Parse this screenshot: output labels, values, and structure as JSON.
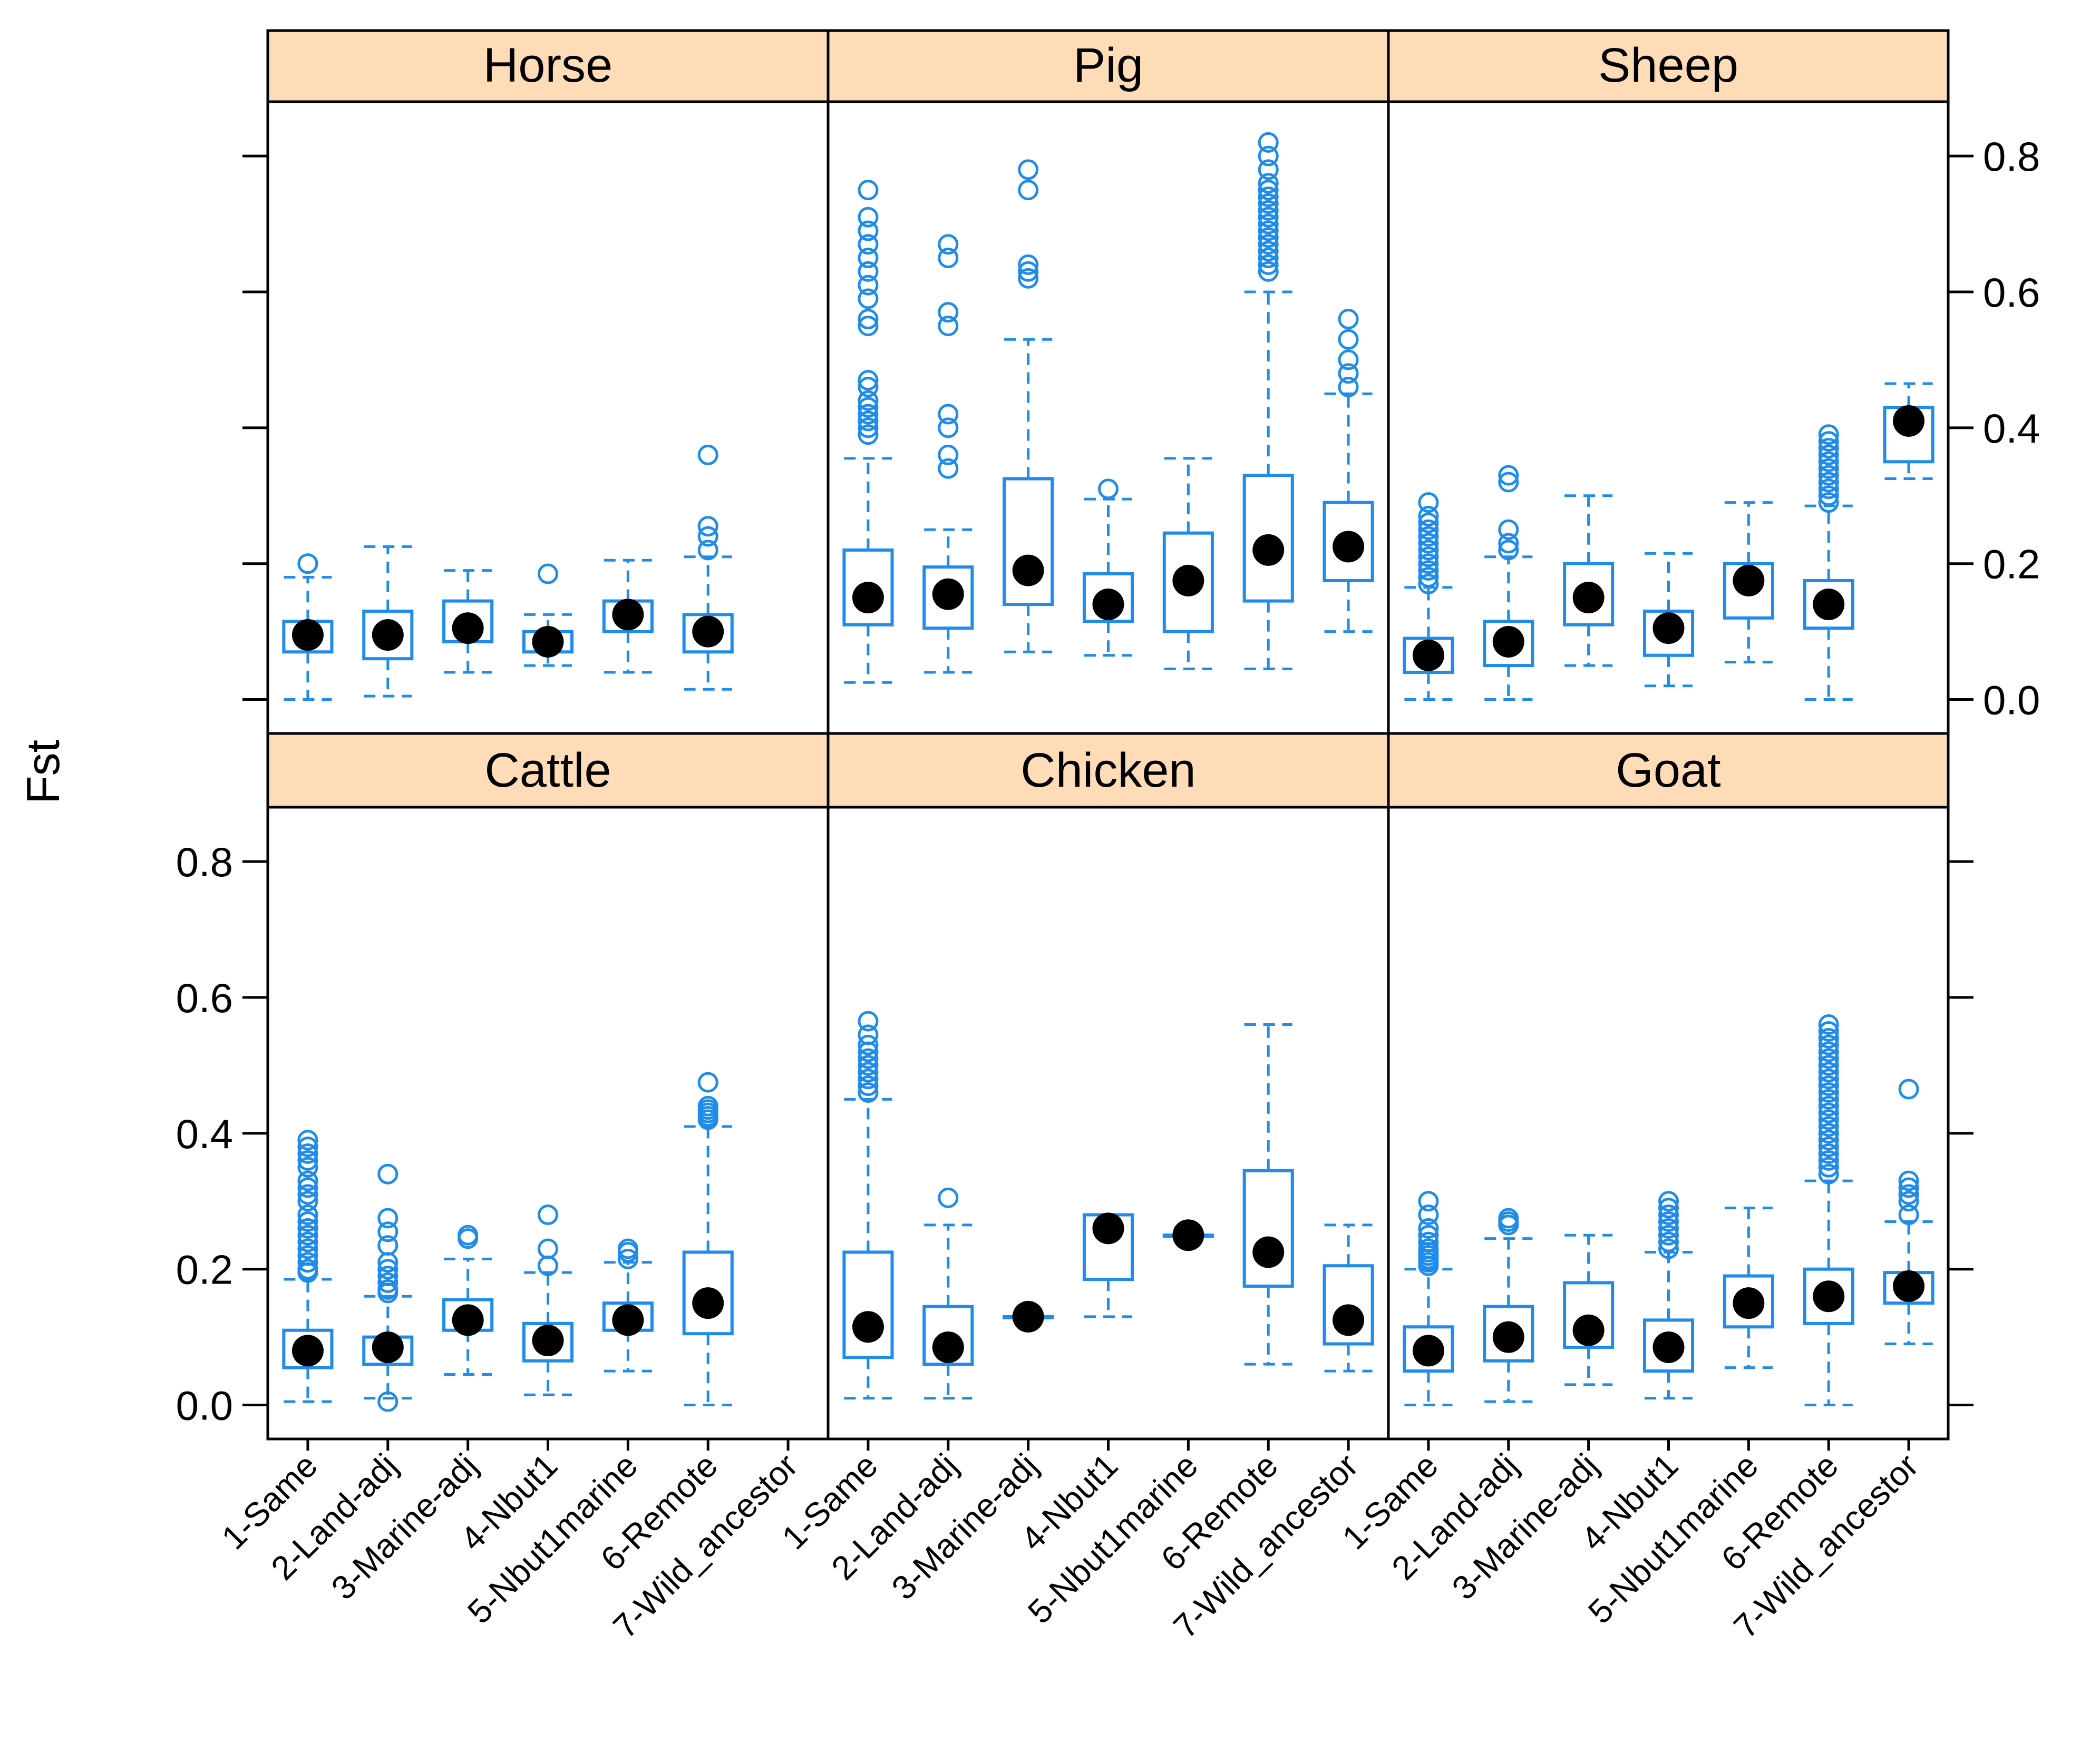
{
  "chart_data": {
    "type": "boxplot",
    "ylabel": "Fst",
    "ylim": [
      -0.05,
      0.88
    ],
    "yticks": [
      0.0,
      0.2,
      0.4,
      0.6,
      0.8
    ],
    "ytick_labels": [
      "0.0",
      "0.2",
      "0.4",
      "0.6",
      "0.8"
    ],
    "categories": [
      "1-Same",
      "2-Land-adj",
      "3-Marine-adj",
      "4-Nbut1",
      "5-Nbut1marine",
      "6-Remote",
      "7-Wild_ancestor"
    ],
    "colors": {
      "box": "#1f8ceb",
      "median": "#000000",
      "strip_bg": "#ffdcb8",
      "frame": "#000000"
    },
    "panels": [
      {
        "name": "Horse",
        "boxes": [
          {
            "category": "1-Same",
            "whisker_low": 0.0,
            "q1": 0.07,
            "median": 0.095,
            "q3": 0.115,
            "whisker_high": 0.18,
            "outliers": [
              0.2,
              0.2
            ]
          },
          {
            "category": "2-Land-adj",
            "whisker_low": 0.005,
            "q1": 0.06,
            "median": 0.095,
            "q3": 0.13,
            "whisker_high": 0.225,
            "outliers": []
          },
          {
            "category": "3-Marine-adj",
            "whisker_low": 0.04,
            "q1": 0.085,
            "median": 0.105,
            "q3": 0.145,
            "whisker_high": 0.19,
            "outliers": []
          },
          {
            "category": "4-Nbut1",
            "whisker_low": 0.05,
            "q1": 0.07,
            "median": 0.085,
            "q3": 0.1,
            "whisker_high": 0.125,
            "outliers": [
              0.185
            ]
          },
          {
            "category": "5-Nbut1marine",
            "whisker_low": 0.04,
            "q1": 0.1,
            "median": 0.125,
            "q3": 0.145,
            "whisker_high": 0.205,
            "outliers": []
          },
          {
            "category": "6-Remote",
            "whisker_low": 0.015,
            "q1": 0.07,
            "median": 0.1,
            "q3": 0.125,
            "whisker_high": 0.21,
            "outliers": [
              0.22,
              0.24,
              0.255,
              0.36
            ]
          },
          {
            "category": "7-Wild_ancestor",
            "absent": true
          }
        ]
      },
      {
        "name": "Pig",
        "boxes": [
          {
            "category": "1-Same",
            "whisker_low": 0.025,
            "q1": 0.11,
            "median": 0.15,
            "q3": 0.22,
            "whisker_high": 0.355,
            "outliers": [
              0.39,
              0.4,
              0.41,
              0.42,
              0.43,
              0.44,
              0.46,
              0.47,
              0.55,
              0.56,
              0.59,
              0.61,
              0.63,
              0.65,
              0.67,
              0.69,
              0.71,
              0.75
            ]
          },
          {
            "category": "2-Land-adj",
            "whisker_low": 0.04,
            "q1": 0.105,
            "median": 0.155,
            "q3": 0.195,
            "whisker_high": 0.25,
            "outliers": [
              0.34,
              0.36,
              0.4,
              0.42,
              0.55,
              0.57,
              0.65,
              0.67
            ]
          },
          {
            "category": "3-Marine-adj",
            "whisker_low": 0.07,
            "q1": 0.14,
            "median": 0.19,
            "q3": 0.325,
            "whisker_high": 0.53,
            "outliers": [
              0.62,
              0.63,
              0.64,
              0.75,
              0.78
            ]
          },
          {
            "category": "4-Nbut1",
            "whisker_low": 0.065,
            "q1": 0.115,
            "median": 0.14,
            "q3": 0.185,
            "whisker_high": 0.295,
            "outliers": [
              0.31
            ]
          },
          {
            "category": "5-Nbut1marine",
            "whisker_low": 0.045,
            "q1": 0.1,
            "median": 0.175,
            "q3": 0.245,
            "whisker_high": 0.355,
            "outliers": []
          },
          {
            "category": "6-Remote",
            "whisker_low": 0.045,
            "q1": 0.145,
            "median": 0.22,
            "q3": 0.33,
            "whisker_high": 0.6,
            "outliers": [
              0.63,
              0.64,
              0.65,
              0.66,
              0.67,
              0.68,
              0.69,
              0.7,
              0.71,
              0.72,
              0.73,
              0.74,
              0.75,
              0.76,
              0.78,
              0.8,
              0.82
            ]
          },
          {
            "category": "7-Wild_ancestor",
            "whisker_low": 0.1,
            "q1": 0.175,
            "median": 0.225,
            "q3": 0.29,
            "whisker_high": 0.45,
            "outliers": [
              0.46,
              0.48,
              0.5,
              0.53,
              0.56
            ]
          }
        ]
      },
      {
        "name": "Sheep",
        "boxes": [
          {
            "category": "1-Same",
            "whisker_low": 0.0,
            "q1": 0.04,
            "median": 0.065,
            "q3": 0.09,
            "whisker_high": 0.165,
            "outliers": [
              0.17,
              0.18,
              0.19,
              0.2,
              0.21,
              0.22,
              0.23,
              0.24,
              0.25,
              0.26,
              0.27,
              0.29
            ]
          },
          {
            "category": "2-Land-adj",
            "whisker_low": 0.0,
            "q1": 0.05,
            "median": 0.085,
            "q3": 0.115,
            "whisker_high": 0.21,
            "outliers": [
              0.22,
              0.23,
              0.25,
              0.32,
              0.33
            ]
          },
          {
            "category": "3-Marine-adj",
            "whisker_low": 0.05,
            "q1": 0.11,
            "median": 0.15,
            "q3": 0.2,
            "whisker_high": 0.3,
            "outliers": []
          },
          {
            "category": "4-Nbut1",
            "whisker_low": 0.02,
            "q1": 0.065,
            "median": 0.105,
            "q3": 0.13,
            "whisker_high": 0.215,
            "outliers": []
          },
          {
            "category": "5-Nbut1marine",
            "whisker_low": 0.055,
            "q1": 0.12,
            "median": 0.175,
            "q3": 0.2,
            "whisker_high": 0.29,
            "outliers": []
          },
          {
            "category": "6-Remote",
            "whisker_low": 0.0,
            "q1": 0.105,
            "median": 0.14,
            "q3": 0.175,
            "whisker_high": 0.285,
            "outliers": [
              0.29,
              0.3,
              0.31,
              0.32,
              0.33,
              0.34,
              0.35,
              0.36,
              0.37,
              0.38,
              0.39
            ]
          },
          {
            "category": "7-Wild_ancestor",
            "whisker_low": 0.325,
            "q1": 0.35,
            "median": 0.41,
            "q3": 0.43,
            "whisker_high": 0.465,
            "outliers": []
          }
        ]
      },
      {
        "name": "Cattle",
        "boxes": [
          {
            "category": "1-Same",
            "whisker_low": 0.005,
            "q1": 0.055,
            "median": 0.08,
            "q3": 0.11,
            "whisker_high": 0.185,
            "outliers": [
              0.195,
              0.2,
              0.21,
              0.22,
              0.23,
              0.24,
              0.25,
              0.26,
              0.27,
              0.28,
              0.3,
              0.31,
              0.32,
              0.33,
              0.35,
              0.36,
              0.37,
              0.38,
              0.39
            ]
          },
          {
            "category": "2-Land-adj",
            "whisker_low": 0.01,
            "q1": 0.06,
            "median": 0.085,
            "q3": 0.1,
            "whisker_high": 0.16,
            "outliers": [
              0.005,
              0.165,
              0.17,
              0.18,
              0.19,
              0.2,
              0.21,
              0.235,
              0.255,
              0.275,
              0.34
            ]
          },
          {
            "category": "3-Marine-adj",
            "whisker_low": 0.045,
            "q1": 0.11,
            "median": 0.125,
            "q3": 0.155,
            "whisker_high": 0.215,
            "outliers": [
              0.245,
              0.25
            ]
          },
          {
            "category": "4-Nbut1",
            "whisker_low": 0.015,
            "q1": 0.065,
            "median": 0.095,
            "q3": 0.12,
            "whisker_high": 0.195,
            "outliers": [
              0.205,
              0.23,
              0.28
            ]
          },
          {
            "category": "5-Nbut1marine",
            "whisker_low": 0.05,
            "q1": 0.11,
            "median": 0.125,
            "q3": 0.15,
            "whisker_high": 0.21,
            "outliers": [
              0.215,
              0.225,
              0.23
            ]
          },
          {
            "category": "6-Remote",
            "whisker_low": 0.0,
            "q1": 0.105,
            "median": 0.15,
            "q3": 0.225,
            "whisker_high": 0.41,
            "outliers": [
              0.42,
              0.425,
              0.43,
              0.435,
              0.44,
              0.475
            ]
          },
          {
            "category": "7-Wild_ancestor",
            "absent": true
          }
        ]
      },
      {
        "name": "Chicken",
        "boxes": [
          {
            "category": "1-Same",
            "whisker_low": 0.01,
            "q1": 0.07,
            "median": 0.115,
            "q3": 0.225,
            "whisker_high": 0.45,
            "outliers": [
              0.46,
              0.47,
              0.48,
              0.49,
              0.5,
              0.51,
              0.52,
              0.53,
              0.545,
              0.565
            ]
          },
          {
            "category": "2-Land-adj",
            "whisker_low": 0.01,
            "q1": 0.06,
            "median": 0.085,
            "q3": 0.145,
            "whisker_high": 0.265,
            "outliers": [
              0.305
            ]
          },
          {
            "category": "3-Marine-adj",
            "whisker_low": 0.13,
            "q1": 0.13,
            "median": 0.13,
            "q3": 0.13,
            "whisker_high": 0.13,
            "outliers": []
          },
          {
            "category": "4-Nbut1",
            "whisker_low": 0.13,
            "q1": 0.185,
            "median": 0.26,
            "q3": 0.28,
            "whisker_high": 0.28,
            "outliers": []
          },
          {
            "category": "5-Nbut1marine",
            "whisker_low": 0.25,
            "q1": 0.25,
            "median": 0.25,
            "q3": 0.25,
            "whisker_high": 0.25,
            "outliers": []
          },
          {
            "category": "6-Remote",
            "whisker_low": 0.06,
            "q1": 0.175,
            "median": 0.225,
            "q3": 0.345,
            "whisker_high": 0.56,
            "outliers": []
          },
          {
            "category": "7-Wild_ancestor",
            "whisker_low": 0.05,
            "q1": 0.09,
            "median": 0.125,
            "q3": 0.205,
            "whisker_high": 0.265,
            "outliers": []
          }
        ]
      },
      {
        "name": "Goat",
        "boxes": [
          {
            "category": "1-Same",
            "whisker_low": 0.0,
            "q1": 0.05,
            "median": 0.08,
            "q3": 0.115,
            "whisker_high": 0.2,
            "outliers": [
              0.205,
              0.21,
              0.215,
              0.22,
              0.225,
              0.23,
              0.24,
              0.25,
              0.26,
              0.28,
              0.3
            ]
          },
          {
            "category": "2-Land-adj",
            "whisker_low": 0.005,
            "q1": 0.065,
            "median": 0.1,
            "q3": 0.145,
            "whisker_high": 0.245,
            "outliers": [
              0.265,
              0.27,
              0.275
            ]
          },
          {
            "category": "3-Marine-adj",
            "whisker_low": 0.03,
            "q1": 0.085,
            "median": 0.11,
            "q3": 0.18,
            "whisker_high": 0.25,
            "outliers": []
          },
          {
            "category": "4-Nbut1",
            "whisker_low": 0.01,
            "q1": 0.05,
            "median": 0.085,
            "q3": 0.125,
            "whisker_high": 0.225,
            "outliers": [
              0.23,
              0.24,
              0.25,
              0.26,
              0.27,
              0.28,
              0.29,
              0.3
            ]
          },
          {
            "category": "5-Nbut1marine",
            "whisker_low": 0.055,
            "q1": 0.115,
            "median": 0.15,
            "q3": 0.19,
            "whisker_high": 0.29,
            "outliers": []
          },
          {
            "category": "6-Remote",
            "whisker_low": 0.0,
            "q1": 0.12,
            "median": 0.16,
            "q3": 0.2,
            "whisker_high": 0.33,
            "outliers": [
              0.34,
              0.35,
              0.36,
              0.37,
              0.38,
              0.39,
              0.4,
              0.41,
              0.42,
              0.43,
              0.44,
              0.45,
              0.46,
              0.47,
              0.48,
              0.49,
              0.5,
              0.51,
              0.52,
              0.53,
              0.54,
              0.55,
              0.56
            ]
          },
          {
            "category": "7-Wild_ancestor",
            "whisker_low": 0.09,
            "q1": 0.15,
            "median": 0.175,
            "q3": 0.195,
            "whisker_high": 0.27,
            "outliers": [
              0.28,
              0.3,
              0.31,
              0.32,
              0.33,
              0.465
            ]
          }
        ]
      }
    ]
  }
}
